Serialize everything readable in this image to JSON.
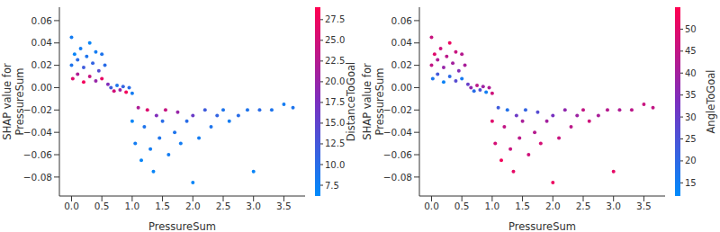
{
  "chart_data": [
    {
      "type": "scatter",
      "y_label": [
        "SHAP value for",
        "PressureSum"
      ],
      "x_label": "PressureSum",
      "xlim": [
        -0.2,
        3.85
      ],
      "xticks": [
        {
          "value": 0,
          "label": "0.0"
        },
        {
          "value": 0.5,
          "label": "0.5"
        },
        {
          "value": 1,
          "label": "1.0"
        },
        {
          "value": 1.5,
          "label": "1.5"
        },
        {
          "value": 2,
          "label": "2.0"
        },
        {
          "value": 2.5,
          "label": "2.5"
        },
        {
          "value": 3,
          "label": "3.0"
        },
        {
          "value": 3.5,
          "label": "3.5"
        }
      ],
      "ylim": [
        -0.097,
        0.072
      ],
      "yticks": [
        {
          "value": -0.08,
          "label": "−0.08"
        },
        {
          "value": -0.06,
          "label": "−0.06"
        },
        {
          "value": -0.04,
          "label": "−0.04"
        },
        {
          "value": -0.02,
          "label": "−0.02"
        },
        {
          "value": 0,
          "label": "0.00"
        },
        {
          "value": 0.02,
          "label": "0.02"
        },
        {
          "value": 0.04,
          "label": "0.04"
        },
        {
          "value": 0.06,
          "label": "0.06"
        }
      ],
      "x": [
        0.0,
        0.0,
        0.02,
        0.05,
        0.1,
        0.1,
        0.15,
        0.2,
        0.2,
        0.25,
        0.3,
        0.3,
        0.35,
        0.4,
        0.4,
        0.45,
        0.5,
        0.5,
        0.55,
        0.6,
        0.65,
        0.7,
        0.75,
        0.8,
        0.85,
        0.9,
        0.95,
        1.0,
        1.0,
        1.05,
        1.1,
        1.15,
        1.2,
        1.25,
        1.3,
        1.35,
        1.4,
        1.45,
        1.5,
        1.55,
        1.6,
        1.7,
        1.75,
        1.8,
        1.9,
        2.0,
        2.0,
        2.1,
        2.2,
        2.3,
        2.4,
        2.5,
        2.6,
        2.75,
        2.9,
        3.0,
        3.1,
        3.3,
        3.5,
        3.65
      ],
      "values": [
        0.045,
        0.02,
        0.008,
        0.03,
        0.012,
        0.025,
        0.035,
        0.005,
        0.018,
        0.028,
        0.01,
        0.04,
        0.022,
        0.006,
        0.032,
        0.015,
        0.03,
        0.008,
        0.02,
        0.003,
        0.0,
        -0.003,
        0.002,
        -0.002,
        0.001,
        -0.004,
        0.0,
        -0.005,
        -0.03,
        -0.05,
        -0.018,
        -0.065,
        -0.035,
        -0.02,
        -0.055,
        -0.075,
        -0.025,
        -0.045,
        -0.03,
        -0.02,
        -0.06,
        -0.04,
        -0.022,
        -0.05,
        -0.03,
        -0.085,
        -0.025,
        -0.045,
        -0.02,
        -0.035,
        -0.025,
        -0.02,
        -0.03,
        -0.025,
        -0.02,
        -0.075,
        -0.02,
        -0.02,
        -0.015,
        -0.018
      ],
      "color_values": [
        8,
        9,
        26,
        7,
        22,
        10,
        8,
        28,
        12,
        9,
        24,
        7,
        11,
        20,
        8,
        14,
        9,
        27,
        10,
        18,
        12,
        25,
        9,
        20,
        11,
        28,
        10,
        8,
        7,
        8,
        22,
        7,
        9,
        26,
        8,
        7,
        18,
        9,
        10,
        24,
        8,
        9,
        20,
        8,
        10,
        7,
        16,
        8,
        12,
        9,
        11,
        9,
        8,
        10,
        9,
        7,
        10,
        9,
        8,
        9
      ],
      "colorbar": {
        "label": "DistanceToGoal",
        "range": [
          6.2,
          29
        ],
        "colors": [
          "#008bfb",
          "#7b2fbf",
          "#ff0051"
        ],
        "ticks": [
          7.5,
          {
            "value": 10,
            "label": "10.0"
          },
          12.5,
          {
            "value": 15,
            "label": "15.0"
          },
          17.5,
          {
            "value": 20,
            "label": "20.0"
          },
          22.5,
          {
            "value": 25,
            "label": "25.0"
          },
          27.5
        ]
      }
    },
    {
      "type": "scatter",
      "y_label": [
        "SHAP value for",
        "PressureSum"
      ],
      "x_label": "PressureSum",
      "xlim": [
        -0.2,
        3.85
      ],
      "xticks": [
        {
          "value": 0,
          "label": "0.0"
        },
        {
          "value": 0.5,
          "label": "0.5"
        },
        {
          "value": 1,
          "label": "1.0"
        },
        {
          "value": 1.5,
          "label": "1.5"
        },
        {
          "value": 2,
          "label": "2.0"
        },
        {
          "value": 2.5,
          "label": "2.5"
        },
        {
          "value": 3,
          "label": "3.0"
        },
        {
          "value": 3.5,
          "label": "3.5"
        }
      ],
      "ylim": [
        -0.097,
        0.072
      ],
      "yticks": [
        {
          "value": -0.08,
          "label": "−0.08"
        },
        {
          "value": -0.06,
          "label": "−0.06"
        },
        {
          "value": -0.04,
          "label": "−0.04"
        },
        {
          "value": -0.02,
          "label": "−0.02"
        },
        {
          "value": 0,
          "label": "0.00"
        },
        {
          "value": 0.02,
          "label": "0.02"
        },
        {
          "value": 0.04,
          "label": "0.04"
        },
        {
          "value": 0.06,
          "label": "0.06"
        }
      ],
      "x": [
        0.0,
        0.0,
        0.02,
        0.05,
        0.1,
        0.1,
        0.15,
        0.2,
        0.2,
        0.25,
        0.3,
        0.3,
        0.35,
        0.4,
        0.4,
        0.45,
        0.5,
        0.5,
        0.55,
        0.6,
        0.65,
        0.7,
        0.75,
        0.8,
        0.85,
        0.9,
        0.95,
        1.0,
        1.0,
        1.05,
        1.1,
        1.15,
        1.2,
        1.25,
        1.3,
        1.35,
        1.4,
        1.45,
        1.5,
        1.55,
        1.6,
        1.7,
        1.75,
        1.8,
        1.9,
        2.0,
        2.0,
        2.1,
        2.2,
        2.3,
        2.4,
        2.5,
        2.6,
        2.75,
        2.9,
        3.0,
        3.1,
        3.3,
        3.5,
        3.65
      ],
      "values": [
        0.045,
        0.02,
        0.008,
        0.03,
        0.012,
        0.025,
        0.035,
        0.005,
        0.018,
        0.028,
        0.01,
        0.04,
        0.022,
        0.006,
        0.032,
        0.015,
        0.03,
        0.008,
        0.02,
        0.003,
        0.0,
        -0.003,
        0.002,
        -0.002,
        0.001,
        -0.004,
        0.0,
        -0.005,
        -0.03,
        -0.05,
        -0.018,
        -0.065,
        -0.035,
        -0.02,
        -0.055,
        -0.075,
        -0.025,
        -0.045,
        -0.03,
        -0.02,
        -0.06,
        -0.04,
        -0.022,
        -0.05,
        -0.03,
        -0.085,
        -0.025,
        -0.045,
        -0.02,
        -0.035,
        -0.025,
        -0.02,
        -0.03,
        -0.025,
        -0.02,
        -0.075,
        -0.02,
        -0.02,
        -0.015,
        -0.018
      ],
      "color_values": [
        46,
        45,
        17,
        50,
        24,
        42,
        47,
        14,
        38,
        44,
        20,
        52,
        40,
        27,
        46,
        35,
        43,
        16,
        41,
        30,
        37,
        19,
        44,
        26,
        39,
        15,
        42,
        47,
        50,
        48,
        23,
        53,
        45,
        18,
        46,
        51,
        31,
        44,
        41,
        21,
        47,
        43,
        27,
        48,
        40,
        52,
        33,
        46,
        37,
        44,
        39,
        45,
        47,
        41,
        43,
        51,
        42,
        44,
        46,
        45
      ],
      "colorbar": {
        "label": "AngleToGoal",
        "range": [
          12,
          55
        ],
        "colors": [
          "#008bfb",
          "#7b2fbf",
          "#ff0051"
        ],
        "ticks": [
          15,
          20,
          25,
          30,
          35,
          40,
          45,
          50
        ]
      }
    }
  ]
}
